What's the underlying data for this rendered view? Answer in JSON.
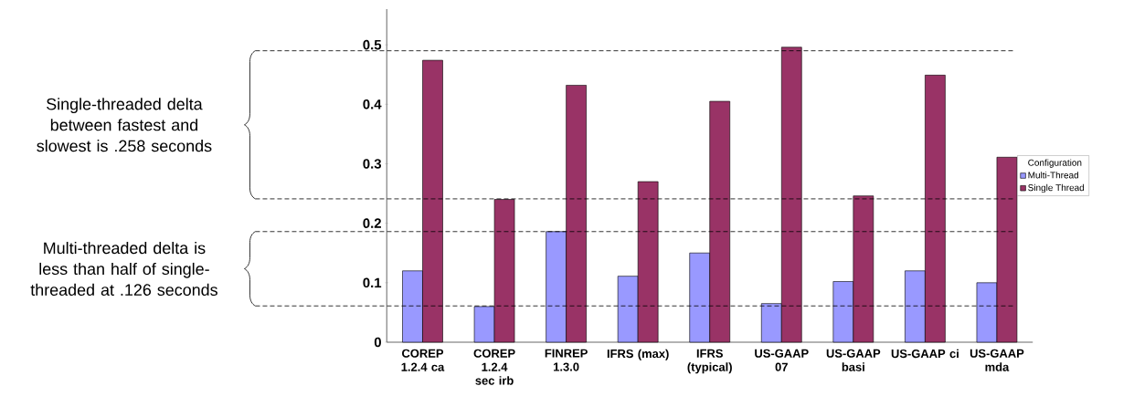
{
  "chart_data": {
    "type": "bar",
    "categories": [
      "COREP 1.2.4 ca",
      "COREP 1.2.4 sec irb",
      "FINREP 1.3.0",
      "IFRS (max)",
      "IFRS (typical)",
      "US-GAAP 07",
      "US-GAAP basi",
      "US-GAAP ci",
      "US-GAAP mda"
    ],
    "series": [
      {
        "name": "Multi-Thread",
        "color": "#9999ff",
        "values": [
          0.12,
          0.06,
          0.186,
          0.111,
          0.15,
          0.065,
          0.102,
          0.12,
          0.1
        ]
      },
      {
        "name": "Single Thread",
        "color": "#993366",
        "values": [
          0.474,
          0.24,
          0.432,
          0.27,
          0.405,
          0.496,
          0.246,
          0.449,
          0.311
        ]
      }
    ],
    "ylim": [
      0,
      0.56
    ],
    "yticks": [
      0,
      0.1,
      0.2,
      0.3,
      0.4,
      0.5
    ],
    "legend": "right",
    "legend_title": "Configuration",
    "ref_lines": [
      {
        "axis": "y",
        "value": 0.49,
        "color": "#000000",
        "line_style": "dashed"
      },
      {
        "axis": "y",
        "value": 0.241,
        "color": "#000000",
        "line_style": "dashed"
      },
      {
        "axis": "y",
        "value": 0.186,
        "color": "#000000",
        "line_style": "dashed"
      },
      {
        "axis": "y",
        "value": 0.061,
        "color": "#000000",
        "line_style": "dashed"
      }
    ],
    "annotations": [
      "Single-threaded delta between fastest and slowest is .258 seconds",
      "Multi-threaded delta is less than half of single-threaded at .126 seconds"
    ]
  }
}
